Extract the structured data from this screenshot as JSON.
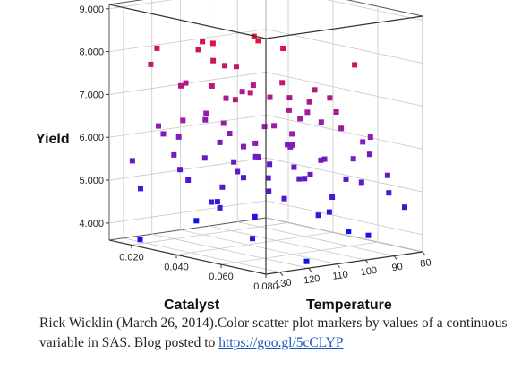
{
  "chart_data": {
    "type": "scatter",
    "projection": "3d",
    "xlabel": "Catalyst",
    "ylabel": "Temperature",
    "zlabel": "Yield",
    "x_ticks": [
      "0.020",
      "0.040",
      "0.060",
      "0.080"
    ],
    "y_ticks": [
      "80",
      "90",
      "100",
      "110",
      "120",
      "130"
    ],
    "z_ticks": [
      "4.000",
      "5.000",
      "6.000",
      "7.000",
      "8.000",
      "9.000"
    ],
    "xlim": [
      0.01,
      0.08
    ],
    "ylim": [
      80,
      135
    ],
    "zlim": [
      3.6,
      9.1
    ],
    "grid": true,
    "color_by": "Yield",
    "color_low": "#1010ee",
    "color_mid": "#8f1fb0",
    "color_high": "#ee1030",
    "points": [
      {
        "x": 0.062,
        "y": 125,
        "z": 8.85
      },
      {
        "x": 0.06,
        "y": 122,
        "z": 8.7
      },
      {
        "x": 0.066,
        "y": 118,
        "z": 8.55
      },
      {
        "x": 0.05,
        "y": 130,
        "z": 8.6
      },
      {
        "x": 0.03,
        "y": 118,
        "z": 8.3
      },
      {
        "x": 0.025,
        "y": 130,
        "z": 8.2
      },
      {
        "x": 0.045,
        "y": 126,
        "z": 8.1
      },
      {
        "x": 0.018,
        "y": 110,
        "z": 7.9
      },
      {
        "x": 0.07,
        "y": 96,
        "z": 8.0
      },
      {
        "x": 0.04,
        "y": 118,
        "z": 7.85
      },
      {
        "x": 0.035,
        "y": 110,
        "z": 7.7
      },
      {
        "x": 0.012,
        "y": 122,
        "z": 7.6
      },
      {
        "x": 0.058,
        "y": 112,
        "z": 7.6
      },
      {
        "x": 0.047,
        "y": 128,
        "z": 7.55
      },
      {
        "x": 0.07,
        "y": 110,
        "z": 7.55
      },
      {
        "x": 0.06,
        "y": 130,
        "z": 7.4
      },
      {
        "x": 0.054,
        "y": 120,
        "z": 7.4
      },
      {
        "x": 0.04,
        "y": 108,
        "z": 7.3
      },
      {
        "x": 0.028,
        "y": 124,
        "z": 7.3
      },
      {
        "x": 0.02,
        "y": 116,
        "z": 7.2
      },
      {
        "x": 0.05,
        "y": 110,
        "z": 7.15
      },
      {
        "x": 0.064,
        "y": 100,
        "z": 7.2
      },
      {
        "x": 0.06,
        "y": 104,
        "z": 7.1
      },
      {
        "x": 0.046,
        "y": 100,
        "z": 7.0
      },
      {
        "x": 0.038,
        "y": 116,
        "z": 7.05
      },
      {
        "x": 0.03,
        "y": 104,
        "z": 7.0
      },
      {
        "x": 0.072,
        "y": 104,
        "z": 7.0
      },
      {
        "x": 0.066,
        "y": 112,
        "z": 6.85
      },
      {
        "x": 0.056,
        "y": 108,
        "z": 6.9
      },
      {
        "x": 0.054,
        "y": 100,
        "z": 6.75
      },
      {
        "x": 0.062,
        "y": 118,
        "z": 6.7
      },
      {
        "x": 0.07,
        "y": 118,
        "z": 6.6
      },
      {
        "x": 0.042,
        "y": 120,
        "z": 6.55
      },
      {
        "x": 0.034,
        "y": 128,
        "z": 6.6
      },
      {
        "x": 0.024,
        "y": 112,
        "z": 6.5
      },
      {
        "x": 0.064,
        "y": 96,
        "z": 6.45
      },
      {
        "x": 0.05,
        "y": 92,
        "z": 6.4
      },
      {
        "x": 0.072,
        "y": 92,
        "z": 6.3
      },
      {
        "x": 0.04,
        "y": 104,
        "z": 6.3
      },
      {
        "x": 0.018,
        "y": 124,
        "z": 6.25
      },
      {
        "x": 0.016,
        "y": 106,
        "z": 6.2
      },
      {
        "x": 0.056,
        "y": 124,
        "z": 6.2
      },
      {
        "x": 0.066,
        "y": 90,
        "z": 6.1
      },
      {
        "x": 0.06,
        "y": 110,
        "z": 6.15
      },
      {
        "x": 0.032,
        "y": 110,
        "z": 6.1
      },
      {
        "x": 0.046,
        "y": 112,
        "z": 6.05
      },
      {
        "x": 0.022,
        "y": 120,
        "z": 6.0
      },
      {
        "x": 0.054,
        "y": 106,
        "z": 6.0
      },
      {
        "x": 0.01,
        "y": 116,
        "z": 5.9
      },
      {
        "x": 0.072,
        "y": 98,
        "z": 5.85
      },
      {
        "x": 0.04,
        "y": 96,
        "z": 5.8
      },
      {
        "x": 0.05,
        "y": 114,
        "z": 5.8
      },
      {
        "x": 0.03,
        "y": 128,
        "z": 5.75
      },
      {
        "x": 0.064,
        "y": 86,
        "z": 5.75
      },
      {
        "x": 0.02,
        "y": 104,
        "z": 5.7
      },
      {
        "x": 0.06,
        "y": 100,
        "z": 5.7
      },
      {
        "x": 0.044,
        "y": 118,
        "z": 5.65
      },
      {
        "x": 0.054,
        "y": 94,
        "z": 5.6
      },
      {
        "x": 0.036,
        "y": 104,
        "z": 5.55
      },
      {
        "x": 0.068,
        "y": 110,
        "z": 5.55
      },
      {
        "x": 0.026,
        "y": 114,
        "z": 5.5
      },
      {
        "x": 0.014,
        "y": 130,
        "z": 5.45
      },
      {
        "x": 0.062,
        "y": 120,
        "z": 5.5
      },
      {
        "x": 0.048,
        "y": 100,
        "z": 5.4
      },
      {
        "x": 0.072,
        "y": 86,
        "z": 5.35
      },
      {
        "x": 0.058,
        "y": 106,
        "z": 5.3
      },
      {
        "x": 0.038,
        "y": 112,
        "z": 5.3
      },
      {
        "x": 0.032,
        "y": 96,
        "z": 5.25
      },
      {
        "x": 0.068,
        "y": 92,
        "z": 5.2
      },
      {
        "x": 0.02,
        "y": 118,
        "z": 5.2
      },
      {
        "x": 0.044,
        "y": 122,
        "z": 5.1
      },
      {
        "x": 0.056,
        "y": 88,
        "z": 5.1
      },
      {
        "x": 0.064,
        "y": 116,
        "z": 5.0
      },
      {
        "x": 0.052,
        "y": 112,
        "z": 5.0
      },
      {
        "x": 0.028,
        "y": 102,
        "z": 4.95
      },
      {
        "x": 0.04,
        "y": 90,
        "z": 4.95
      },
      {
        "x": 0.07,
        "y": 84,
        "z": 4.9
      },
      {
        "x": 0.016,
        "y": 112,
        "z": 4.85
      },
      {
        "x": 0.06,
        "y": 96,
        "z": 4.8
      },
      {
        "x": 0.048,
        "y": 126,
        "z": 4.7
      },
      {
        "x": 0.034,
        "y": 118,
        "z": 4.6
      },
      {
        "x": 0.072,
        "y": 80,
        "z": 4.55
      },
      {
        "x": 0.024,
        "y": 108,
        "z": 4.4
      },
      {
        "x": 0.01,
        "y": 124,
        "z": 4.7
      },
      {
        "x": 0.064,
        "y": 104,
        "z": 4.5
      },
      {
        "x": 0.046,
        "y": 86,
        "z": 4.2
      },
      {
        "x": 0.06,
        "y": 124,
        "z": 4.1
      },
      {
        "x": 0.028,
        "y": 98,
        "z": 4.0
      },
      {
        "x": 0.066,
        "y": 88,
        "z": 3.9
      },
      {
        "x": 0.012,
        "y": 106,
        "z": 3.8
      },
      {
        "x": 0.052,
        "y": 84,
        "z": 3.8
      },
      {
        "x": 0.02,
        "y": 132,
        "z": 3.7
      },
      {
        "x": 0.074,
        "y": 116,
        "z": 3.65
      }
    ]
  },
  "caption": {
    "text": "Rick Wicklin (March 26, 2014).Color scatter plot markers by values of a continuous variable in SAS. Blog posted to ",
    "link": "https://goo.gl/5cCLYP"
  }
}
